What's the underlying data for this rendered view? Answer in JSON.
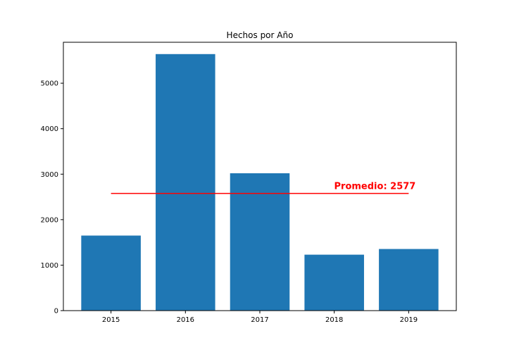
{
  "chart_data": {
    "type": "bar",
    "title": "Hechos por Año",
    "xlabel": "",
    "ylabel": "",
    "categories": [
      "2015",
      "2016",
      "2017",
      "2018",
      "2019"
    ],
    "values": [
      1650,
      5640,
      3020,
      1230,
      1355
    ],
    "ylim": [
      0,
      5900
    ],
    "yticks": [
      0,
      1000,
      2000,
      3000,
      4000,
      5000
    ],
    "grid": false,
    "bar_color": "#1f77b4",
    "average_line": {
      "value": 2577,
      "color": "#ff0000",
      "label": "Promedio: 2577"
    }
  }
}
